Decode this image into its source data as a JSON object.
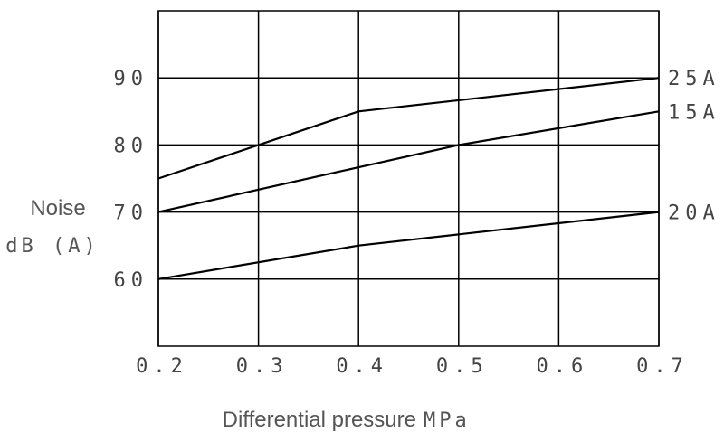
{
  "chart_data": {
    "type": "line",
    "x": [
      0.2,
      0.3,
      0.4,
      0.5,
      0.6,
      0.7
    ],
    "x_tick_labels": [
      "0.2",
      "0.3",
      "0.4",
      "0.5",
      "0.6",
      "0.7"
    ],
    "xlim": [
      0.2,
      0.7
    ],
    "ylim": [
      50,
      100
    ],
    "y_ticks": [
      60,
      70,
      80,
      90
    ],
    "y_tick_labels": [
      "60",
      "70",
      "80",
      "90"
    ],
    "xlabel": "Differential pressure",
    "xlabel_unit": "MPa",
    "ylabel": "Noise",
    "ylabel_unit": "dB (A)",
    "grid": true,
    "series": [
      {
        "name": "25A",
        "x": [
          0.2,
          0.3,
          0.4,
          0.7
        ],
        "y": [
          75,
          80,
          85,
          90
        ]
      },
      {
        "name": "15A",
        "x": [
          0.2,
          0.5,
          0.7
        ],
        "y": [
          70,
          80,
          85
        ]
      },
      {
        "name": "20A",
        "x": [
          0.2,
          0.4,
          0.7
        ],
        "y": [
          60,
          65,
          70
        ]
      }
    ]
  }
}
